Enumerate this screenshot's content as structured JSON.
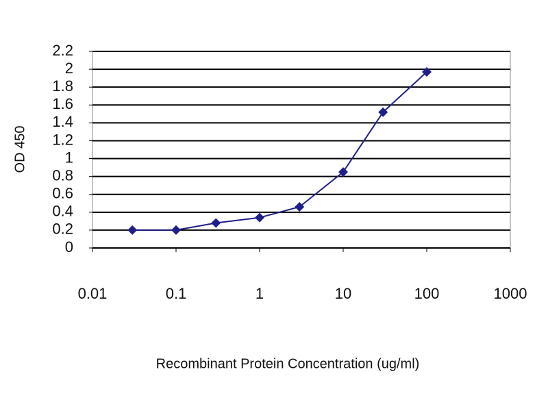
{
  "chart_data": {
    "type": "line",
    "x_label": "Recombinant Protein Concentration (ug/ml)",
    "y_label": "OD 450",
    "x": [
      0.03,
      0.1,
      0.3,
      1,
      3,
      10,
      30,
      100
    ],
    "series": [
      {
        "name": "OD 450",
        "color": "#1f1f8a",
        "values": [
          0.2,
          0.2,
          0.28,
          0.34,
          0.46,
          0.85,
          1.52,
          1.97
        ]
      }
    ],
    "xlim": [
      0.01,
      1000
    ],
    "xticks": [
      0.01,
      0.1,
      1,
      10,
      100,
      1000
    ],
    "xscale": "log",
    "ylim": [
      0,
      2.2
    ],
    "yticks": [
      0,
      0.2,
      0.4,
      0.6,
      0.8,
      1,
      1.2,
      1.4,
      1.6,
      1.8,
      2,
      2.2
    ],
    "grid": true,
    "legend": false
  }
}
